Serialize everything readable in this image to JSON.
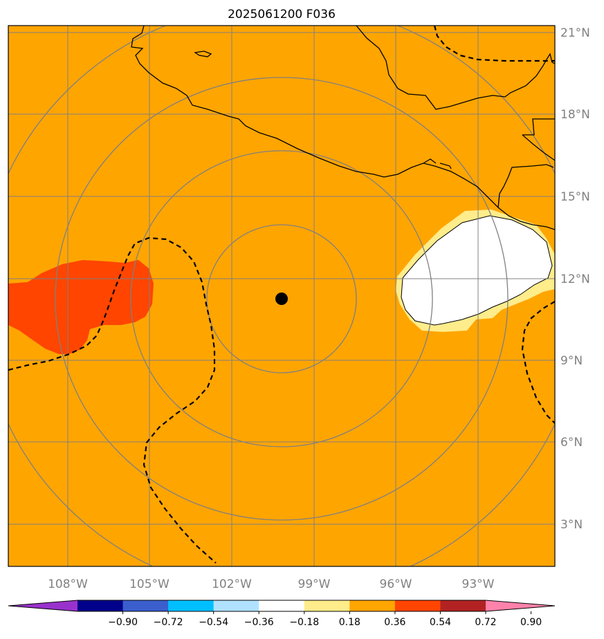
{
  "title": "2025061200 F036",
  "map": {
    "background_color": "#FFA500",
    "latitude_labels": [
      "21°N",
      "18°N",
      "15°N",
      "12°N",
      "9°N",
      "6°N",
      "3°N"
    ],
    "longitude_labels": [
      "108°W",
      "105°W",
      "102°W",
      "99°W",
      "96°W",
      "93°W"
    ],
    "center_marker": "black-dot",
    "range_rings": 4,
    "gridline_color": "#808080",
    "coastline_color": "#000000",
    "contour_style": "dashed-black"
  },
  "colorbar": {
    "colors": [
      "#9932CC",
      "#00008B",
      "#3A5FCD",
      "#00BFFF",
      "#B0E2FF",
      "#FFFFFF",
      "#FFEC8B",
      "#FFA500",
      "#FF4500",
      "#B22222",
      "#FF82AB"
    ],
    "tick_labels": [
      "−0.90",
      "−0.72",
      "−0.54",
      "−0.36",
      "−0.18",
      "0.18",
      "0.36",
      "0.54",
      "0.72",
      "0.90"
    ],
    "extend": "both"
  }
}
